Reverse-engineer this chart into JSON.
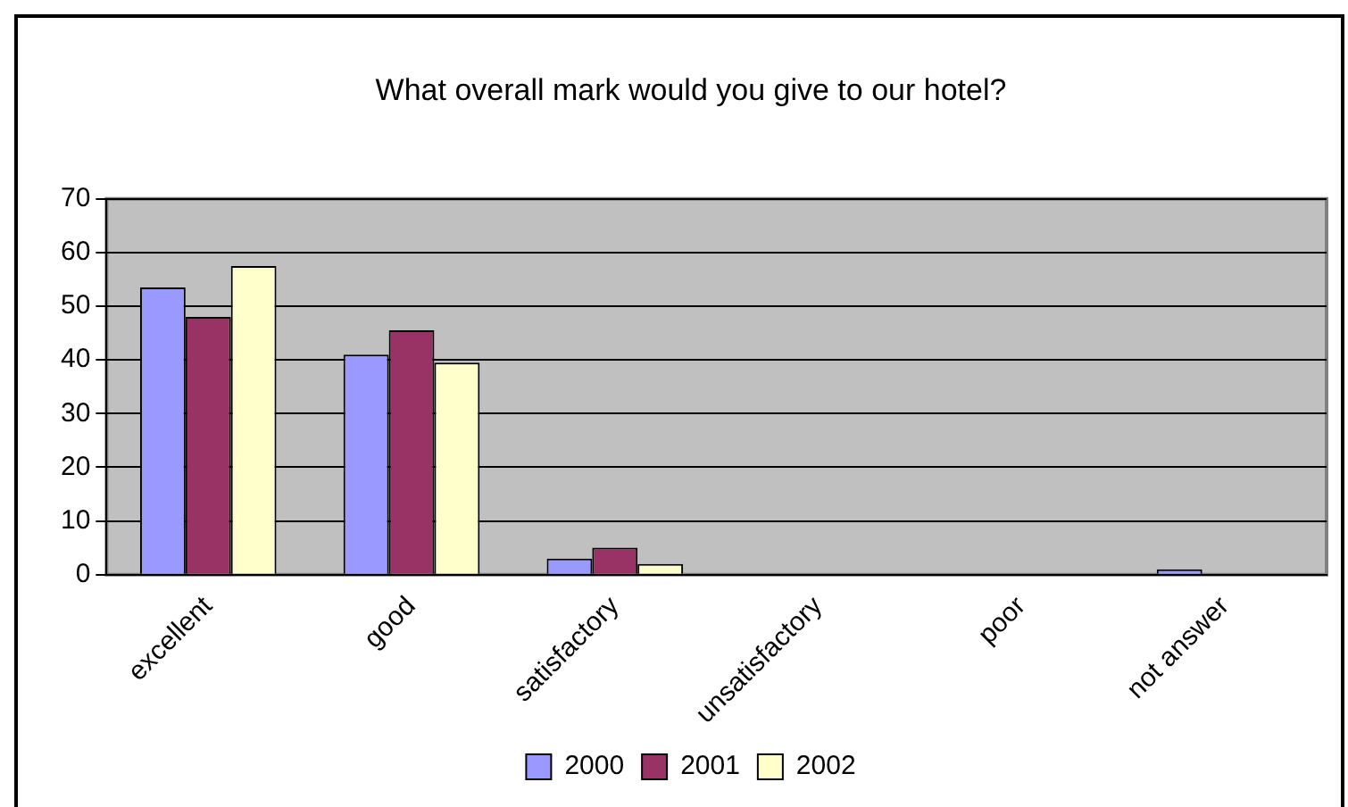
{
  "chart_data": {
    "type": "bar",
    "title": "What overall mark would you give to our hotel?",
    "categories": [
      "excellent",
      "good",
      "satisfactory",
      "unsatisfactory",
      "poor",
      "not answer"
    ],
    "series": [
      {
        "name": "2000",
        "color": "#9999ff",
        "values": [
          53.5,
          41,
          3,
          0,
          0,
          1
        ]
      },
      {
        "name": "2001",
        "color": "#993366",
        "values": [
          48,
          45.5,
          5,
          0,
          0,
          0
        ]
      },
      {
        "name": "2002",
        "color": "#ffffcc",
        "values": [
          57.5,
          39.5,
          2,
          0,
          0,
          0
        ]
      }
    ],
    "ylim": [
      0,
      70
    ],
    "yticks": [
      0,
      10,
      20,
      30,
      40,
      50,
      60,
      70
    ],
    "grid": "y",
    "legend": "bottom"
  }
}
